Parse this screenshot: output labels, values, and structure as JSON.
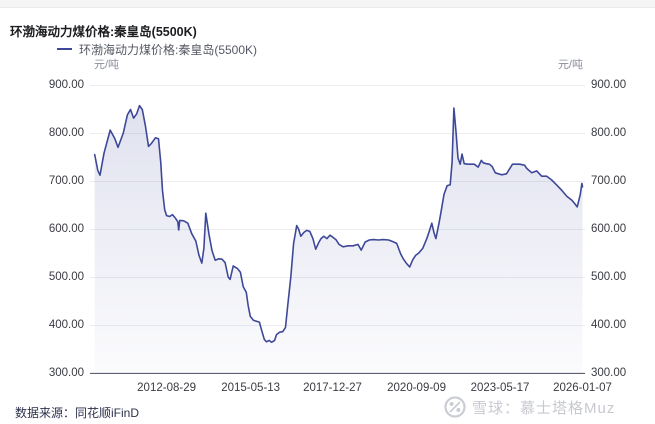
{
  "page": {
    "title": "环渤海动力煤价格:秦皇岛(5500K)"
  },
  "legend": {
    "label": "环渤海动力煤价格:秦皇岛(5500K)"
  },
  "axes": {
    "left_unit": "元/吨",
    "right_unit": "元/吨"
  },
  "footer": {
    "source": "数据来源：同花顺iFinD",
    "watermark": "雪球：慕士塔格Muz"
  },
  "colors": {
    "line": "#3e4899",
    "fill_top": "rgba(62,72,153,0.16)",
    "fill_bottom": "rgba(62,72,153,0.02)",
    "grid": "#ededf1",
    "axis": "#5c6070",
    "title_text": "#1b1c20",
    "tick_text": "#3a3b42",
    "legend_text": "#545863",
    "unit_text": "#8b8f9b",
    "source_text": "#2c304b",
    "watermark_text": "#c7c9d0"
  },
  "chart_data": {
    "type": "line",
    "title": "环渤海动力煤价格:秦皇岛(5500K)",
    "ylabel": "元/吨",
    "ylim": [
      300,
      900
    ],
    "y_ticks": [
      "900.00",
      "800.00",
      "700.00",
      "600.00",
      "500.00",
      "400.00",
      "300.00"
    ],
    "x_ticks": [
      "2012-08-29",
      "2015-05-13",
      "2017-12-27",
      "2020-09-09",
      "2023-05-17",
      "2026-01-07"
    ],
    "x_tick_years": [
      2012.66,
      2015.36,
      2017.99,
      2020.69,
      2023.37,
      2026.02
    ],
    "x_domain": [
      2010.2,
      2026.1
    ],
    "grid": "horizontal",
    "legend_position": "top-left",
    "series": [
      {
        "name": "环渤海动力煤价格:秦皇岛(5500K)",
        "points": [
          [
            2010.35,
            755
          ],
          [
            2010.45,
            722
          ],
          [
            2010.52,
            712
          ],
          [
            2010.65,
            758
          ],
          [
            2010.85,
            806
          ],
          [
            2011.0,
            788
          ],
          [
            2011.1,
            770
          ],
          [
            2011.27,
            800
          ],
          [
            2011.4,
            838
          ],
          [
            2011.5,
            849
          ],
          [
            2011.6,
            831
          ],
          [
            2011.7,
            840
          ],
          [
            2011.79,
            857
          ],
          [
            2011.88,
            849
          ],
          [
            2011.98,
            815
          ],
          [
            2012.08,
            772
          ],
          [
            2012.17,
            778
          ],
          [
            2012.3,
            790
          ],
          [
            2012.4,
            788
          ],
          [
            2012.47,
            740
          ],
          [
            2012.53,
            680
          ],
          [
            2012.6,
            640
          ],
          [
            2012.66,
            628
          ],
          [
            2012.76,
            626
          ],
          [
            2012.85,
            630
          ],
          [
            2012.95,
            622
          ],
          [
            2013.02,
            615
          ],
          [
            2013.05,
            598
          ],
          [
            2013.08,
            618
          ],
          [
            2013.21,
            617
          ],
          [
            2013.34,
            612
          ],
          [
            2013.47,
            590
          ],
          [
            2013.6,
            575
          ],
          [
            2013.7,
            545
          ],
          [
            2013.79,
            529
          ],
          [
            2013.86,
            560
          ],
          [
            2013.92,
            633
          ],
          [
            2014.02,
            590
          ],
          [
            2014.12,
            555
          ],
          [
            2014.22,
            535
          ],
          [
            2014.34,
            538
          ],
          [
            2014.44,
            537
          ],
          [
            2014.54,
            530
          ],
          [
            2014.64,
            500
          ],
          [
            2014.7,
            495
          ],
          [
            2014.8,
            523
          ],
          [
            2014.93,
            518
          ],
          [
            2015.03,
            510
          ],
          [
            2015.12,
            480
          ],
          [
            2015.22,
            468
          ],
          [
            2015.28,
            440
          ],
          [
            2015.35,
            418
          ],
          [
            2015.45,
            410
          ],
          [
            2015.54,
            408
          ],
          [
            2015.64,
            406
          ],
          [
            2015.71,
            390
          ],
          [
            2015.8,
            370
          ],
          [
            2015.87,
            365
          ],
          [
            2015.96,
            368
          ],
          [
            2016.03,
            364
          ],
          [
            2016.13,
            368
          ],
          [
            2016.19,
            380
          ],
          [
            2016.29,
            385
          ],
          [
            2016.39,
            386
          ],
          [
            2016.48,
            395
          ],
          [
            2016.55,
            440
          ],
          [
            2016.65,
            500
          ],
          [
            2016.74,
            570
          ],
          [
            2016.84,
            607
          ],
          [
            2016.9,
            600
          ],
          [
            2016.97,
            585
          ],
          [
            2017.07,
            593
          ],
          [
            2017.16,
            597
          ],
          [
            2017.26,
            595
          ],
          [
            2017.36,
            580
          ],
          [
            2017.45,
            558
          ],
          [
            2017.55,
            572
          ],
          [
            2017.62,
            580
          ],
          [
            2017.71,
            585
          ],
          [
            2017.81,
            580
          ],
          [
            2017.91,
            587
          ],
          [
            2018.0,
            583
          ],
          [
            2018.1,
            578
          ],
          [
            2018.2,
            568
          ],
          [
            2018.33,
            563
          ],
          [
            2018.49,
            565
          ],
          [
            2018.65,
            565
          ],
          [
            2018.81,
            568
          ],
          [
            2018.91,
            556
          ],
          [
            2019.04,
            573
          ],
          [
            2019.17,
            577
          ],
          [
            2019.3,
            578
          ],
          [
            2019.46,
            577
          ],
          [
            2019.62,
            578
          ],
          [
            2019.79,
            577
          ],
          [
            2019.92,
            574
          ],
          [
            2020.05,
            570
          ],
          [
            2020.18,
            548
          ],
          [
            2020.27,
            537
          ],
          [
            2020.37,
            528
          ],
          [
            2020.47,
            521
          ],
          [
            2020.57,
            536
          ],
          [
            2020.66,
            545
          ],
          [
            2020.76,
            550
          ],
          [
            2020.89,
            560
          ],
          [
            2021.02,
            580
          ],
          [
            2021.12,
            600
          ],
          [
            2021.18,
            612
          ],
          [
            2021.25,
            592
          ],
          [
            2021.31,
            580
          ],
          [
            2021.41,
            612
          ],
          [
            2021.47,
            634
          ],
          [
            2021.57,
            672
          ],
          [
            2021.67,
            690
          ],
          [
            2021.77,
            692
          ],
          [
            2021.83,
            740
          ],
          [
            2021.89,
            852
          ],
          [
            2021.96,
            800
          ],
          [
            2022.02,
            748
          ],
          [
            2022.09,
            735
          ],
          [
            2022.15,
            756
          ],
          [
            2022.22,
            736
          ],
          [
            2022.35,
            735
          ],
          [
            2022.54,
            735
          ],
          [
            2022.67,
            729
          ],
          [
            2022.77,
            743
          ],
          [
            2022.83,
            738
          ],
          [
            2022.93,
            736
          ],
          [
            2023.03,
            735
          ],
          [
            2023.12,
            730
          ],
          [
            2023.22,
            717
          ],
          [
            2023.32,
            715
          ],
          [
            2023.42,
            713
          ],
          [
            2023.58,
            715
          ],
          [
            2023.77,
            735
          ],
          [
            2024.0,
            735
          ],
          [
            2024.16,
            733
          ],
          [
            2024.23,
            726
          ],
          [
            2024.39,
            717
          ],
          [
            2024.55,
            721
          ],
          [
            2024.71,
            710
          ],
          [
            2024.87,
            710
          ],
          [
            2025.03,
            702
          ],
          [
            2025.2,
            691
          ],
          [
            2025.36,
            680
          ],
          [
            2025.52,
            668
          ],
          [
            2025.68,
            660
          ],
          [
            2025.78,
            652
          ],
          [
            2025.85,
            646
          ],
          [
            2025.95,
            672
          ],
          [
            2026.0,
            695
          ],
          [
            2026.02,
            688
          ]
        ]
      }
    ]
  }
}
